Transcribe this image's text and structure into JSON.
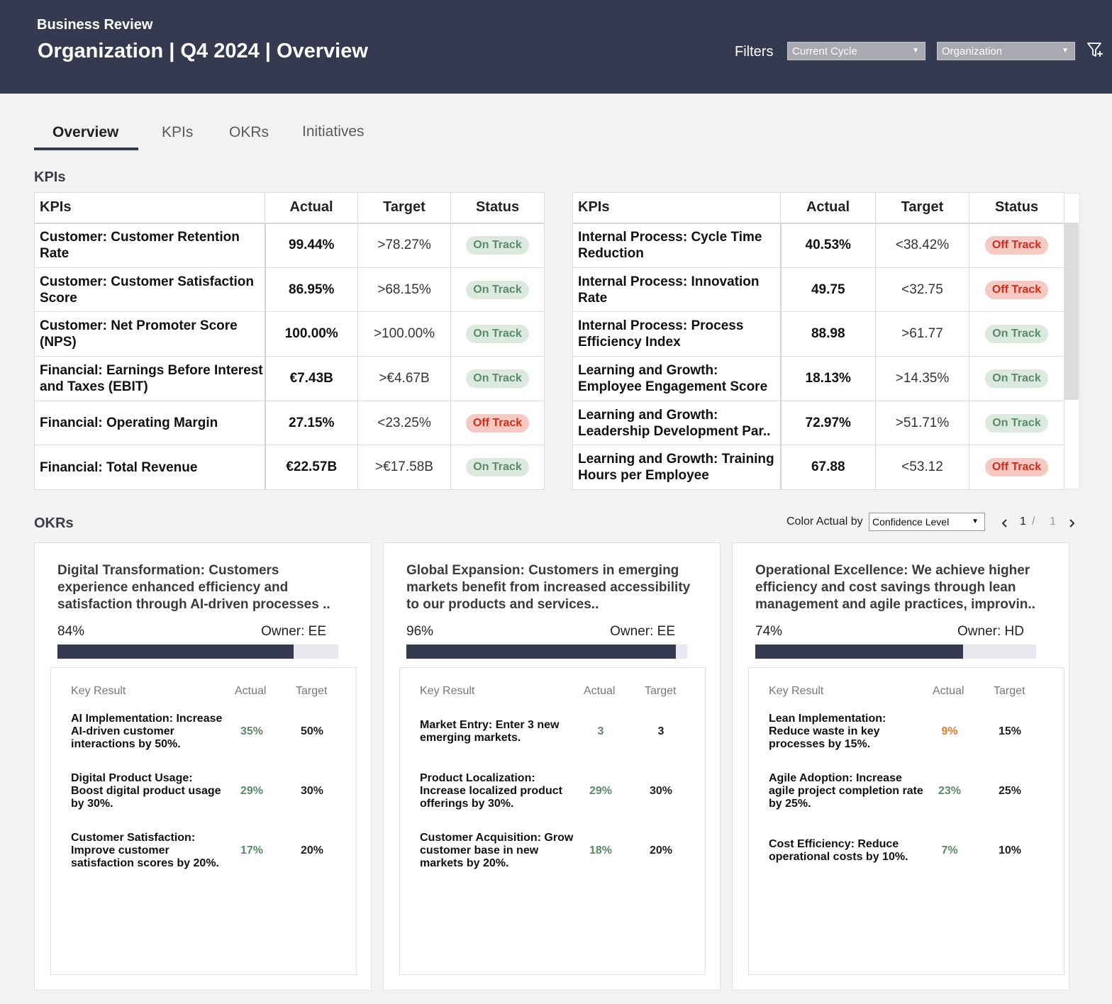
{
  "header": {
    "subtitle": "Business Review",
    "title": "Organization | Q4 2024 | Overview",
    "filters_label": "Filters",
    "cycle_select": "Current Cycle",
    "org_select": "Organization",
    "filter_icon": "filter-icon"
  },
  "tabs": [
    {
      "label": "Overview",
      "active": true
    },
    {
      "label": "KPIs",
      "active": false
    },
    {
      "label": "OKRs",
      "active": false
    },
    {
      "label": "Initiatives",
      "active": false
    }
  ],
  "kpi_section_title": "KPIs",
  "kpi_columns": {
    "name": "KPIs",
    "actual": "Actual",
    "target": "Target",
    "status": "Status"
  },
  "kpi_left": [
    {
      "name": "Customer: Customer Retention Rate",
      "actual": "99.44%",
      "target": ">78.27%",
      "status": "On Track"
    },
    {
      "name": "Customer: Customer Satisfaction Score",
      "actual": "86.95%",
      "target": ">68.15%",
      "status": "On Track"
    },
    {
      "name": "Customer: Net Promoter Score (NPS)",
      "actual": "100.00%",
      "target": ">100.00%",
      "status": "On Track"
    },
    {
      "name": "Financial: Earnings Before Interest and Taxes (EBIT)",
      "actual": "€7.43B",
      "target": ">€4.67B",
      "status": "On Track"
    },
    {
      "name": "Financial: Operating Margin",
      "actual": "27.15%",
      "target": "<23.25%",
      "status": "Off Track"
    },
    {
      "name": "Financial: Total Revenue",
      "actual": "€22.57B",
      "target": ">€17.58B",
      "status": "On Track"
    }
  ],
  "kpi_right": [
    {
      "name": "Internal Process: Cycle Time Reduction",
      "actual": "40.53%",
      "target": "<38.42%",
      "status": "Off Track"
    },
    {
      "name": "Internal Process: Innovation Rate",
      "actual": "49.75",
      "target": "<32.75",
      "status": "Off Track"
    },
    {
      "name": "Internal Process: Process Efficiency Index",
      "actual": "88.98",
      "target": ">61.77",
      "status": "On Track"
    },
    {
      "name": "Learning and Growth: Employee Engagement Score",
      "actual": "18.13%",
      "target": ">14.35%",
      "status": "On Track"
    },
    {
      "name": "Learning and Growth: Leadership Development Par..",
      "actual": "72.97%",
      "target": ">51.71%",
      "status": "On Track"
    },
    {
      "name": "Learning and Growth: Training Hours per Employee",
      "actual": "67.88",
      "target": "<53.12",
      "status": "Off Track"
    }
  ],
  "okr_section_title": "OKRs",
  "okr_controls": {
    "color_label": "Color Actual by",
    "color_select": "Confidence Level",
    "page_current": "1",
    "page_sep": "/",
    "page_total": "1"
  },
  "okr_columns": {
    "key_result": "Key Result",
    "actual": "Actual",
    "target": "Target"
  },
  "okrs": [
    {
      "title": "Digital Transformation: Customers experience enhanced efficiency and satisfaction through AI-driven processes ..",
      "progress_label": "84%",
      "progress": 0.84,
      "owner": "Owner: EE",
      "key_results": [
        {
          "name": "AI Implementation: Increase AI-driven customer interactions by 50%.",
          "actual": "35%",
          "target": "50%",
          "color": "#5a8a68"
        },
        {
          "name": "Digital Product Usage: Boost digital product usage by 30%.",
          "actual": "29%",
          "target": "30%",
          "color": "#5a8a68"
        },
        {
          "name": "Customer Satisfaction: Improve customer satisfaction scores by 20%.",
          "actual": "17%",
          "target": "20%",
          "color": "#5a8a68"
        }
      ]
    },
    {
      "title": "Global Expansion: Customers in emerging markets benefit from increased accessibility to our products and services..",
      "progress_label": "96%",
      "progress": 0.96,
      "owner": "Owner: EE",
      "key_results": [
        {
          "name": "Market Entry: Enter 3 new emerging markets.",
          "actual": "3",
          "target": "3",
          "color": "#5a8a68"
        },
        {
          "name": "Product Localization: Increase localized product offerings by 30%.",
          "actual": "29%",
          "target": "30%",
          "color": "#5a8a68"
        },
        {
          "name": "Customer Acquisition: Grow customer base in new markets by 20%.",
          "actual": "18%",
          "target": "20%",
          "color": "#5a8a68"
        }
      ]
    },
    {
      "title": "Operational Excellence: We achieve higher efficiency and cost savings through lean management and agile practices, improvin..",
      "progress_label": "74%",
      "progress": 0.74,
      "owner": "Owner: HD",
      "key_results": [
        {
          "name": "Lean Implementation: Reduce waste in key processes by 15%.",
          "actual": "9%",
          "target": "15%",
          "color": "#e07a2e"
        },
        {
          "name": "Agile Adoption: Increase agile project completion rate by 25%.",
          "actual": "23%",
          "target": "25%",
          "color": "#5a8a68"
        },
        {
          "name": "Cost Efficiency: Reduce operational costs by 10%.",
          "actual": "7%",
          "target": "10%",
          "color": "#5a8a68"
        }
      ]
    }
  ]
}
